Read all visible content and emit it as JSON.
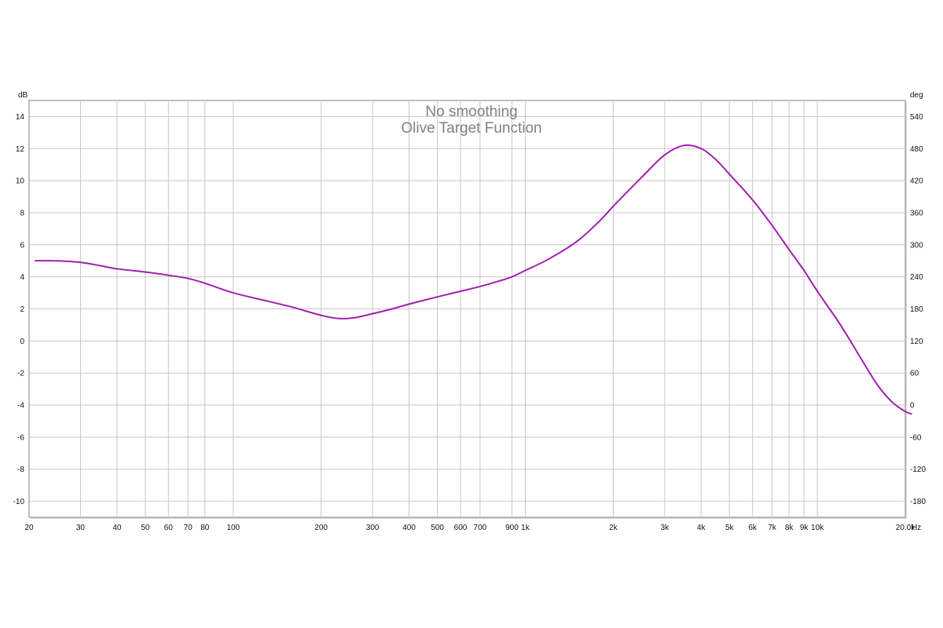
{
  "chart_data": {
    "type": "line",
    "title": "No smoothing",
    "subtitle": "Olive Target Function",
    "x_axis": {
      "scale": "log",
      "range": [
        20,
        20000
      ],
      "unit_label": "Hz",
      "ticks": [
        {
          "value": 20,
          "label": "20"
        },
        {
          "value": 30,
          "label": "30"
        },
        {
          "value": 40,
          "label": "40"
        },
        {
          "value": 50,
          "label": "50"
        },
        {
          "value": 60,
          "label": "60"
        },
        {
          "value": 70,
          "label": "70"
        },
        {
          "value": 80,
          "label": "80"
        },
        {
          "value": 100,
          "label": "100"
        },
        {
          "value": 200,
          "label": "200"
        },
        {
          "value": 300,
          "label": "300"
        },
        {
          "value": 400,
          "label": "400"
        },
        {
          "value": 500,
          "label": "500"
        },
        {
          "value": 600,
          "label": "600"
        },
        {
          "value": 700,
          "label": "700"
        },
        {
          "value": 900,
          "label": "900"
        },
        {
          "value": 1000,
          "label": "1k"
        },
        {
          "value": 2000,
          "label": "2k"
        },
        {
          "value": 3000,
          "label": "3k"
        },
        {
          "value": 4000,
          "label": "4k"
        },
        {
          "value": 5000,
          "label": "5k"
        },
        {
          "value": 6000,
          "label": "6k"
        },
        {
          "value": 7000,
          "label": "7k"
        },
        {
          "value": 8000,
          "label": "8k"
        },
        {
          "value": 9000,
          "label": "9k"
        },
        {
          "value": 10000,
          "label": "10k"
        },
        {
          "value": 20000,
          "label": "20.0k"
        }
      ]
    },
    "y_left": {
      "unit_label": "dB",
      "range": [
        -11,
        15
      ],
      "ticks": [
        14,
        12,
        10,
        8,
        6,
        4,
        2,
        0,
        -2,
        -4,
        -6,
        -8,
        -10
      ]
    },
    "y_right": {
      "unit_label": "deg",
      "ticks": [
        {
          "label": "540",
          "db": 14
        },
        {
          "label": "480",
          "db": 12
        },
        {
          "label": "420",
          "db": 10
        },
        {
          "label": "360",
          "db": 8
        },
        {
          "label": "300",
          "db": 6
        },
        {
          "label": "240",
          "db": 4
        },
        {
          "label": "180",
          "db": 2
        },
        {
          "label": "120",
          "db": 0
        },
        {
          "label": "60",
          "db": -2
        },
        {
          "label": "0",
          "db": -4
        },
        {
          "label": "-60",
          "db": -6
        },
        {
          "label": "-120",
          "db": -8
        },
        {
          "label": "-180",
          "db": -10
        }
      ]
    },
    "grid": true,
    "series": [
      {
        "color": "#a020b0",
        "points": [
          [
            21,
            5.0
          ],
          [
            25,
            5.0
          ],
          [
            30,
            4.9
          ],
          [
            35,
            4.7
          ],
          [
            40,
            4.5
          ],
          [
            50,
            4.3
          ],
          [
            60,
            4.1
          ],
          [
            70,
            3.9
          ],
          [
            80,
            3.6
          ],
          [
            100,
            3.0
          ],
          [
            130,
            2.5
          ],
          [
            160,
            2.1
          ],
          [
            200,
            1.6
          ],
          [
            230,
            1.4
          ],
          [
            260,
            1.45
          ],
          [
            300,
            1.7
          ],
          [
            350,
            2.0
          ],
          [
            400,
            2.3
          ],
          [
            500,
            2.75
          ],
          [
            600,
            3.1
          ],
          [
            700,
            3.4
          ],
          [
            800,
            3.7
          ],
          [
            900,
            4.0
          ],
          [
            1000,
            4.4
          ],
          [
            1200,
            5.1
          ],
          [
            1500,
            6.2
          ],
          [
            1800,
            7.5
          ],
          [
            2000,
            8.4
          ],
          [
            2500,
            10.2
          ],
          [
            3000,
            11.6
          ],
          [
            3500,
            12.2
          ],
          [
            4000,
            12.0
          ],
          [
            4500,
            11.3
          ],
          [
            5000,
            10.4
          ],
          [
            6000,
            8.8
          ],
          [
            7000,
            7.2
          ],
          [
            8000,
            5.7
          ],
          [
            9000,
            4.4
          ],
          [
            10000,
            3.1
          ],
          [
            12000,
            1.0
          ],
          [
            14000,
            -1.0
          ],
          [
            16000,
            -2.7
          ],
          [
            18000,
            -3.8
          ],
          [
            20000,
            -4.4
          ],
          [
            21000,
            -4.55
          ]
        ]
      }
    ]
  }
}
